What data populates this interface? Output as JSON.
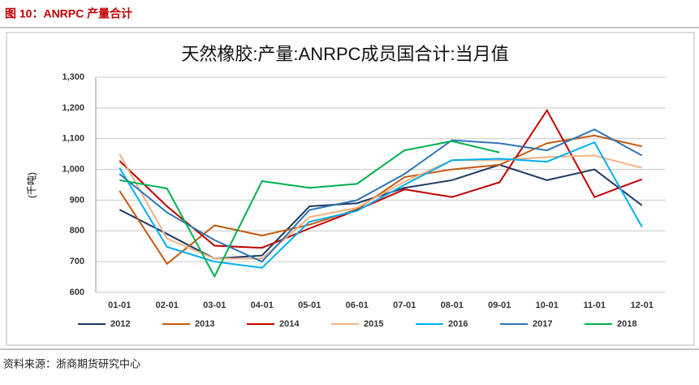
{
  "header": "图 10：ANRPC 产量合计",
  "source": "资料来源：浙商期货研究中心",
  "chart_data": {
    "type": "line",
    "title": "天然橡胶:产量:ANRPC成员国合计:当月值",
    "y_label": "(千吨)",
    "categories": [
      "01-01",
      "02-01",
      "03-01",
      "04-01",
      "05-01",
      "06-01",
      "07-01",
      "08-01",
      "09-01",
      "10-01",
      "11-01",
      "12-01"
    ],
    "ylim": [
      600,
      1300
    ],
    "yticks": [
      600,
      700,
      800,
      900,
      {
        "value": 1000,
        "label": "1,000"
      },
      {
        "value": 1100,
        "label": "1,100"
      },
      {
        "value": 1200,
        "label": "1,200"
      },
      {
        "value": 1300,
        "label": "1,300"
      }
    ],
    "grid": true,
    "legend": "bottom",
    "series": [
      {
        "name": "2012",
        "color": "#1f3864",
        "values": [
          869,
          790,
          710,
          720,
          880,
          890,
          940,
          965,
          1015,
          965,
          1000,
          883
        ]
      },
      {
        "name": "2013",
        "color": "#c55a11",
        "values": [
          930,
          693,
          818,
          785,
          820,
          870,
          975,
          1000,
          1015,
          1085,
          1110,
          1075
        ]
      },
      {
        "name": "2014",
        "color": "#c00000",
        "values": [
          1028,
          880,
          752,
          745,
          808,
          868,
          935,
          910,
          958,
          1192,
          910,
          968
        ]
      },
      {
        "name": "2015",
        "color": "#f4b183",
        "values": [
          1050,
          775,
          710,
          710,
          845,
          875,
          960,
          1030,
          1030,
          1040,
          1045,
          1005
        ]
      },
      {
        "name": "2016",
        "color": "#00b0f0",
        "values": [
          1005,
          748,
          700,
          680,
          830,
          865,
          950,
          1030,
          1035,
          1025,
          1088,
          813
        ]
      },
      {
        "name": "2017",
        "color": "#2e75b6",
        "values": [
          985,
          860,
          770,
          700,
          868,
          900,
          985,
          1095,
          1085,
          1062,
          1130,
          1045
        ]
      },
      {
        "name": "2018",
        "color": "#00b050",
        "values": [
          965,
          938,
          652,
          962,
          940,
          953,
          1062,
          1092,
          1055,
          null,
          null,
          null
        ]
      }
    ]
  }
}
